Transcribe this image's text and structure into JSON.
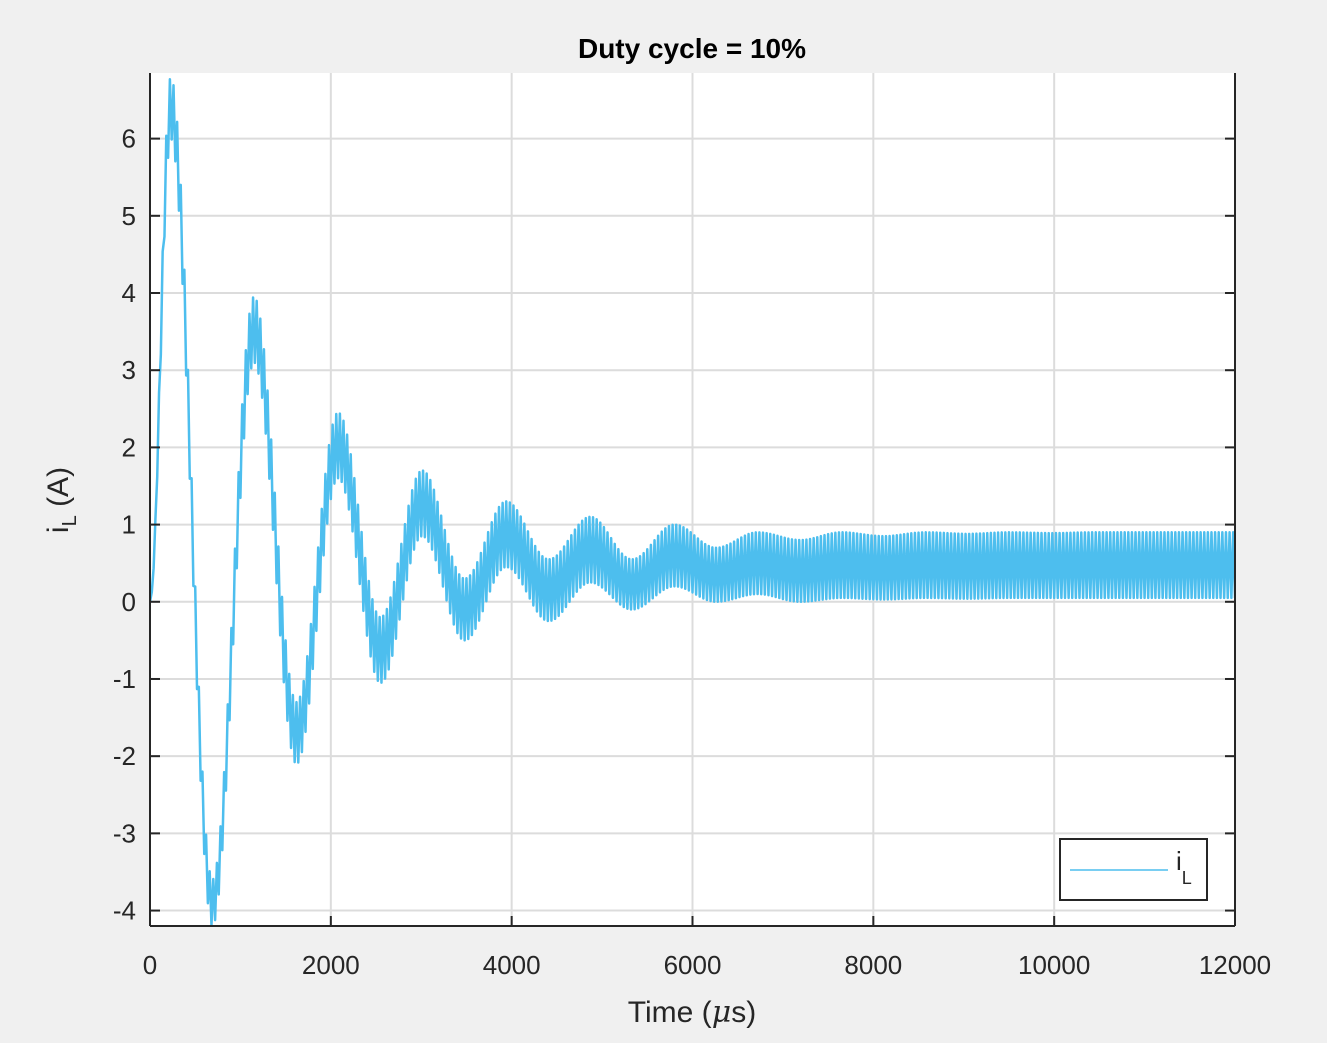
{
  "chart_data": {
    "type": "line",
    "title": "Duty cycle = 10%",
    "xlabel": {
      "main": "Time (",
      "mu": "μ",
      "unit": "s)"
    },
    "ylabel": {
      "base": "i",
      "sub": "L",
      "unit": " (A)"
    },
    "xlim": [
      0,
      12000
    ],
    "ylim": [
      -4.2,
      6.85
    ],
    "xticks": [
      0,
      2000,
      4000,
      6000,
      8000,
      10000,
      12000
    ],
    "xtick_labels": [
      "0",
      "2000",
      "4000",
      "6000",
      "8000",
      "10000",
      "12000"
    ],
    "yticks": [
      -4,
      -3,
      -2,
      -1,
      0,
      1,
      2,
      3,
      4,
      5,
      6
    ],
    "ytick_labels": [
      "-4",
      "-3",
      "-2",
      "-1",
      "0",
      "1",
      "2",
      "3",
      "4",
      "5",
      "6"
    ],
    "grid": true,
    "legend": {
      "position": "bottom-right",
      "base": "i",
      "sub": "L"
    },
    "series": [
      {
        "name": "iL",
        "color": "#4dbeee",
        "envelope": {
          "x": [
            0,
            230,
            690,
            1150,
            1620,
            2080,
            2550,
            3010,
            3480,
            3940,
            4410,
            4870,
            5330,
            5800,
            6260,
            6720,
            7190,
            7650,
            8110,
            8580,
            9040,
            9500,
            9970,
            10430,
            10890,
            11360,
            12000
          ],
          "upper": [
            0,
            6.8,
            -3.6,
            3.95,
            -1.3,
            2.45,
            -0.2,
            1.7,
            0.3,
            1.3,
            0.55,
            1.1,
            0.55,
            1.0,
            0.7,
            0.9,
            0.8,
            0.9,
            0.85,
            0.9,
            0.88,
            0.9,
            0.89,
            0.9,
            0.9,
            0.9,
            0.9
          ],
          "lower": [
            0,
            6.0,
            -4.2,
            3.1,
            -2.1,
            1.6,
            -1.05,
            0.85,
            -0.5,
            0.45,
            -0.25,
            0.25,
            -0.1,
            0.2,
            0.0,
            0.1,
            0.0,
            0.05,
            0.03,
            0.05,
            0.04,
            0.05,
            0.05,
            0.05,
            0.05,
            0.05,
            0.05
          ]
        }
      }
    ]
  }
}
